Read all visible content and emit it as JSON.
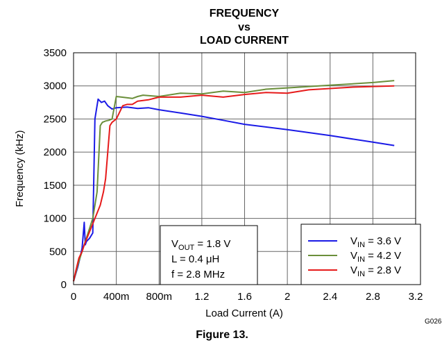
{
  "chart_data": {
    "type": "line",
    "title_lines": [
      "FREQUENCY",
      "vs",
      "LOAD CURRENT"
    ],
    "xlabel": "Load Current (A)",
    "ylabel": "Frequency (kHz)",
    "xlim": [
      0,
      3.2
    ],
    "ylim": [
      0,
      3500
    ],
    "x_ticks": [
      0,
      0.4,
      0.8,
      1.2,
      1.6,
      2.0,
      2.4,
      2.8,
      3.2
    ],
    "x_tick_labels": [
      "0",
      "400m",
      "800m",
      "1.2",
      "1.6",
      "2",
      "2.4",
      "2.8",
      "3.2"
    ],
    "y_ticks": [
      0,
      500,
      1000,
      1500,
      2000,
      2500,
      3000,
      3500
    ],
    "y_tick_labels": [
      "0",
      "500",
      "1000",
      "1500",
      "2000",
      "2500",
      "3000",
      "3500"
    ],
    "grid": true,
    "legend_position": "bottom-right",
    "series": [
      {
        "label_main": "V",
        "label_sub": "IN",
        "label_value": " = 3.6 V",
        "color": "#1a1ae6",
        "x": [
          0,
          0.04,
          0.06,
          0.08,
          0.1,
          0.11,
          0.12,
          0.15,
          0.18,
          0.2,
          0.23,
          0.26,
          0.29,
          0.32,
          0.36,
          0.4,
          0.5,
          0.6,
          0.7,
          0.8,
          1.0,
          1.2,
          1.4,
          1.6,
          2.0,
          2.4,
          2.8,
          3.0
        ],
        "y": [
          50,
          270,
          400,
          550,
          940,
          600,
          650,
          700,
          780,
          2500,
          2800,
          2750,
          2770,
          2700,
          2650,
          2670,
          2680,
          2660,
          2670,
          2640,
          2590,
          2540,
          2480,
          2420,
          2340,
          2250,
          2150,
          2100
        ]
      },
      {
        "label_main": "V",
        "label_sub": "IN",
        "label_value": " = 4.2 V",
        "color": "#6a8f3a",
        "x": [
          0,
          0.04,
          0.06,
          0.08,
          0.1,
          0.12,
          0.15,
          0.18,
          0.2,
          0.22,
          0.25,
          0.27,
          0.3,
          0.33,
          0.36,
          0.4,
          0.45,
          0.55,
          0.6,
          0.65,
          0.8,
          1.0,
          1.2,
          1.4,
          1.6,
          1.8,
          2.0,
          2.4,
          2.8,
          3.0
        ],
        "y": [
          50,
          300,
          400,
          500,
          600,
          700,
          850,
          1000,
          1200,
          1400,
          2400,
          2450,
          2470,
          2480,
          2500,
          2840,
          2830,
          2810,
          2840,
          2860,
          2840,
          2890,
          2880,
          2920,
          2900,
          2950,
          2970,
          3010,
          3050,
          3080
        ]
      },
      {
        "label_main": "V",
        "label_sub": "IN",
        "label_value": " = 2.8 V",
        "color": "#e61a1a",
        "x": [
          0,
          0.02,
          0.05,
          0.08,
          0.1,
          0.15,
          0.2,
          0.25,
          0.28,
          0.3,
          0.34,
          0.36,
          0.4,
          0.46,
          0.5,
          0.55,
          0.6,
          0.7,
          0.8,
          1.0,
          1.2,
          1.4,
          1.6,
          1.8,
          2.0,
          2.2,
          2.6,
          3.0
        ],
        "y": [
          50,
          200,
          400,
          500,
          600,
          800,
          1000,
          1200,
          1400,
          1600,
          2400,
          2450,
          2500,
          2700,
          2720,
          2720,
          2770,
          2790,
          2830,
          2830,
          2860,
          2830,
          2870,
          2900,
          2890,
          2940,
          2980,
          3000
        ]
      }
    ],
    "annotation": {
      "line1_main": "V",
      "line1_sub": "OUT",
      "line1_value": " = 1.8 V",
      "line2": "L = 0.4 μH",
      "line3": "f = 2.8 MHz"
    },
    "figure_code": "G026",
    "caption": "Figure 13."
  }
}
